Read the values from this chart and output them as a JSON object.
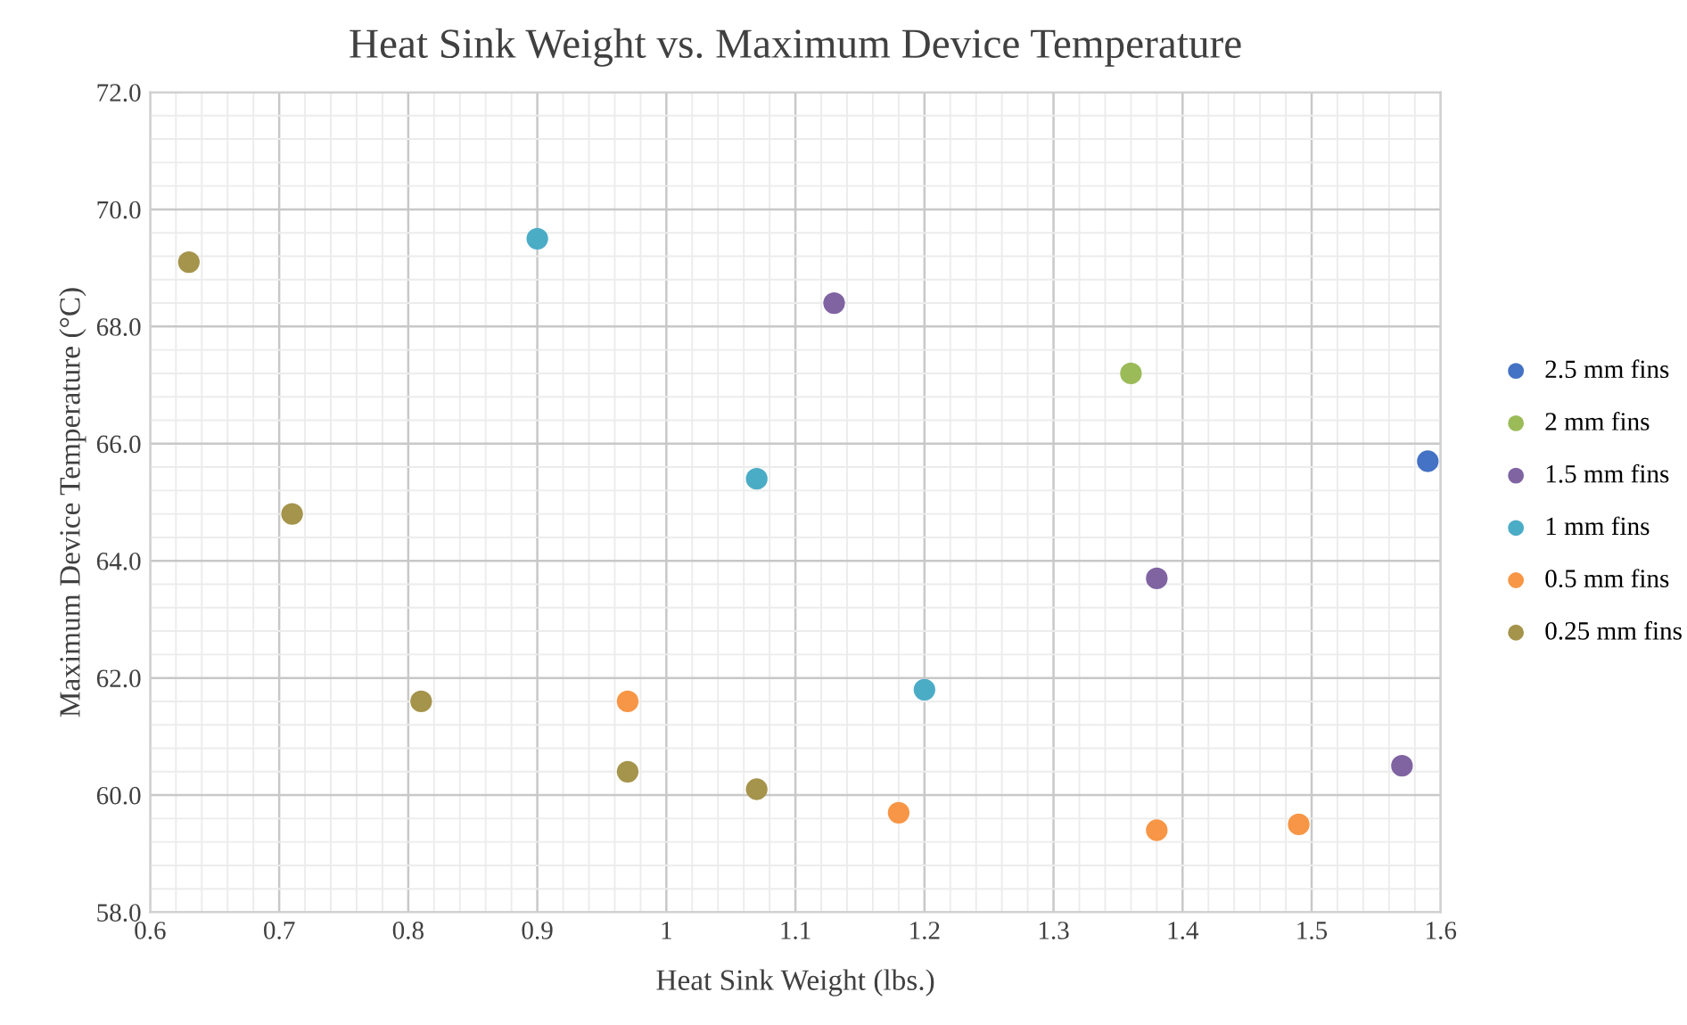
{
  "chart_data": {
    "type": "scatter",
    "title": "Heat Sink Weight vs. Maximum Device Temperature",
    "xlabel": "Heat Sink Weight (lbs.)",
    "ylabel": "Maximum Device Temperature (°C)",
    "xlim": [
      0.6,
      1.6
    ],
    "xticks": [
      0.6,
      0.7,
      0.8,
      0.9,
      1,
      1.1,
      1.2,
      1.3,
      1.4,
      1.5,
      1.6
    ],
    "ylim": [
      58,
      72
    ],
    "yticks": [
      {
        "value": 58,
        "label": "58.0"
      },
      {
        "value": 60,
        "label": "60.0"
      },
      {
        "value": 62,
        "label": "62.0"
      },
      {
        "value": 64,
        "label": "64.0"
      },
      {
        "value": 66,
        "label": "66.0"
      },
      {
        "value": 68,
        "label": "68.0"
      },
      {
        "value": 70,
        "label": "70.0"
      },
      {
        "value": 72,
        "label": "72.0"
      }
    ],
    "grid": true,
    "legend": "right",
    "marker": "circle",
    "series": [
      {
        "name": "2.5 mm fins",
        "color": "#4472c4",
        "x": [
          1.59
        ],
        "values": [
          65.7
        ]
      },
      {
        "name": "2 mm fins",
        "color": "#9bbb59",
        "x": [
          1.36
        ],
        "values": [
          67.2
        ]
      },
      {
        "name": "1.5 mm fins",
        "color": "#8064a2",
        "x": [
          1.13,
          1.38,
          1.57
        ],
        "values": [
          68.4,
          63.7,
          60.5
        ]
      },
      {
        "name": "1 mm fins",
        "color": "#4bacc6",
        "x": [
          0.9,
          1.07,
          1.2
        ],
        "values": [
          69.5,
          65.4,
          61.8
        ]
      },
      {
        "name": "0.5 mm fins",
        "color": "#f79646",
        "x": [
          0.97,
          1.18,
          1.38,
          1.49
        ],
        "values": [
          61.6,
          59.7,
          59.4,
          59.5
        ]
      },
      {
        "name": "0.25 mm fins",
        "color": "#a5944b",
        "x": [
          0.63,
          0.71,
          0.81,
          0.97,
          1.07
        ],
        "values": [
          69.1,
          64.8,
          61.6,
          60.4,
          60.1
        ]
      }
    ]
  }
}
